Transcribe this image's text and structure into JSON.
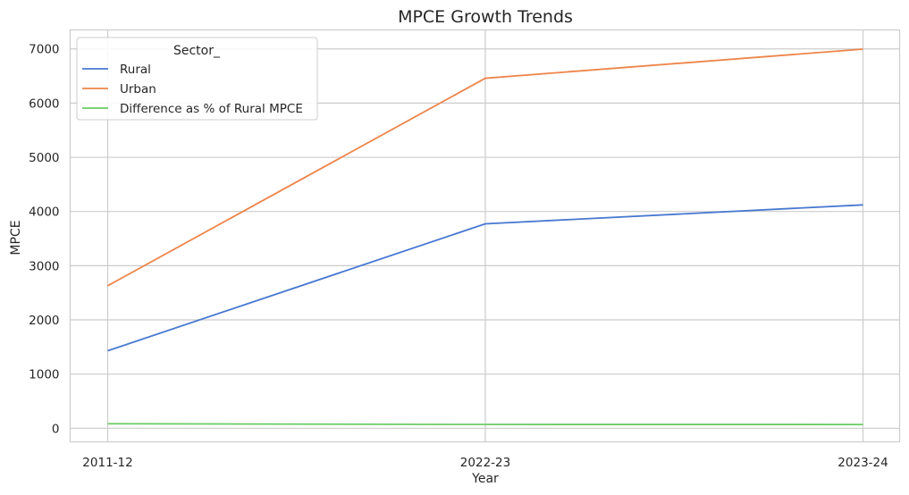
{
  "chart_data": {
    "type": "line",
    "title": "MPCE Growth Trends",
    "xlabel": "Year",
    "ylabel": "MPCE",
    "categories": [
      "2011-12",
      "2022-23",
      "2023-24"
    ],
    "ylim": [
      -250,
      7350
    ],
    "yticks": [
      0,
      1000,
      2000,
      3000,
      4000,
      5000,
      6000,
      7000
    ],
    "grid": true,
    "legend": {
      "title": "Sector_",
      "placement": "top-left"
    },
    "series": [
      {
        "name": "Rural",
        "color": "#4878d0",
        "values": [
          1430,
          3773,
          4122
        ]
      },
      {
        "name": "Urban",
        "color": "#ee854a",
        "values": [
          2630,
          6459,
          6996
        ]
      },
      {
        "name": "Difference as % of Rural MPCE",
        "color": "#6acc64",
        "values": [
          84,
          71,
          70
        ]
      }
    ]
  }
}
